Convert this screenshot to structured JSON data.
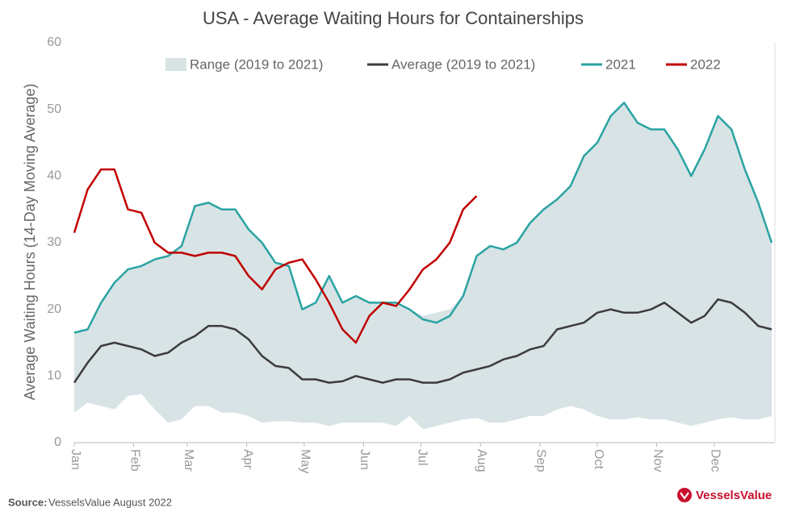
{
  "chart_data": {
    "type": "line",
    "title": "USA - Average Waiting Hours for Containerships",
    "y_label": "Average Waiting Hours (14-Day Moving Average)",
    "source_label": "Source:",
    "source": "VesselsValue August 2022",
    "logo": "VesselsValue",
    "x": [
      1,
      8,
      15,
      22,
      29,
      36,
      43,
      50,
      57,
      64,
      71,
      78,
      85,
      92,
      99,
      106,
      113,
      120,
      127,
      134,
      141,
      148,
      155,
      162,
      169,
      176,
      183,
      190,
      197,
      204,
      211,
      218,
      225,
      232,
      239,
      246,
      253,
      260,
      267,
      274,
      281,
      288,
      295,
      302,
      309,
      316,
      323,
      330,
      337,
      344,
      351,
      358,
      365
    ],
    "xlim": [
      1,
      365
    ],
    "xticks": [
      {
        "value": 1,
        "label": "Jan"
      },
      {
        "value": 32,
        "label": "Feb"
      },
      {
        "value": 60,
        "label": "Mar"
      },
      {
        "value": 91,
        "label": "Apr"
      },
      {
        "value": 121,
        "label": "May"
      },
      {
        "value": 152,
        "label": "Jun"
      },
      {
        "value": 182,
        "label": "Jul"
      },
      {
        "value": 213,
        "label": "Aug"
      },
      {
        "value": 244,
        "label": "Sep"
      },
      {
        "value": 274,
        "label": "Oct"
      },
      {
        "value": 305,
        "label": "Nov"
      },
      {
        "value": 335,
        "label": "Dec"
      }
    ],
    "ylim": [
      0,
      60
    ],
    "yticks": [
      0,
      10,
      20,
      30,
      40,
      50,
      60
    ],
    "grid": false,
    "legend": "top",
    "series": [
      {
        "name": "Range (2019 to 2021)",
        "color": "#d8e3e5",
        "upper": [
          16.5,
          17,
          21,
          24,
          26,
          26.5,
          27.5,
          28,
          29.5,
          35.5,
          36,
          35,
          35,
          32,
          30,
          27,
          26.5,
          20,
          21,
          25,
          21,
          22,
          21,
          21,
          21,
          20,
          19,
          19.5,
          20,
          22,
          28,
          29.5,
          29,
          30,
          33,
          35,
          36.5,
          38.5,
          43,
          45,
          49,
          51,
          48,
          47,
          47,
          44,
          40,
          44,
          49,
          47,
          41,
          36,
          30
        ],
        "lower": [
          4.5,
          6,
          5.5,
          5,
          7,
          7.3,
          5,
          3,
          3.5,
          5.5,
          5.5,
          4.5,
          4.5,
          4,
          3,
          3.2,
          3.2,
          3,
          3,
          2.5,
          3,
          3,
          3,
          3,
          2.5,
          4,
          2,
          2.5,
          3,
          3.5,
          3.7,
          3,
          3,
          3.5,
          4,
          4,
          5,
          5.5,
          5,
          4,
          3.5,
          3.5,
          3.8,
          3.5,
          3.5,
          3,
          2.5,
          3,
          3.5,
          3.8,
          3.5,
          3.5,
          4
        ]
      },
      {
        "name": "Average (2019 to 2021)",
        "color": "#3b3b3b",
        "values": [
          9,
          12,
          14.5,
          15,
          14.5,
          14,
          13,
          13.5,
          15,
          16,
          17.5,
          17.5,
          17,
          15.5,
          13,
          11.5,
          11.2,
          9.5,
          9.5,
          9,
          9.2,
          10,
          9.5,
          9,
          9.5,
          9.5,
          9,
          9,
          9.5,
          10.5,
          11,
          11.5,
          12.5,
          13,
          14,
          14.5,
          17,
          17.5,
          18,
          19.5,
          20,
          19.5,
          19.5,
          20,
          21,
          19.5,
          18,
          19,
          21.5,
          21,
          19.5,
          17.5,
          17
        ]
      },
      {
        "name": "2021",
        "color": "#2aa3a3",
        "values": [
          16.5,
          17,
          21,
          24,
          26,
          26.5,
          27.5,
          28,
          29.5,
          35.5,
          36,
          35,
          35,
          32,
          30,
          27,
          26.5,
          20,
          21,
          25,
          21,
          22,
          21,
          21,
          21,
          20,
          18.5,
          18,
          19,
          22,
          28,
          29.5,
          29,
          30,
          33,
          35,
          36.5,
          38.5,
          43,
          45,
          49,
          51,
          48,
          47,
          47,
          44,
          40,
          44,
          49,
          47,
          41,
          36,
          30
        ]
      },
      {
        "name": "2022",
        "color": "#c00000",
        "values": [
          31.5,
          38,
          41,
          41,
          35,
          34.5,
          30,
          28.5,
          28.5,
          28,
          28.5,
          28.5,
          28,
          25,
          23,
          26,
          27,
          27.5,
          24.5,
          21,
          17,
          15,
          19,
          21,
          20.5,
          23,
          26,
          27.5,
          30,
          35,
          37,
          null,
          null,
          null,
          null,
          null,
          null,
          null,
          null,
          null,
          null,
          null,
          null,
          null,
          null,
          null,
          null,
          null,
          null,
          null,
          null,
          null,
          null
        ]
      }
    ]
  }
}
